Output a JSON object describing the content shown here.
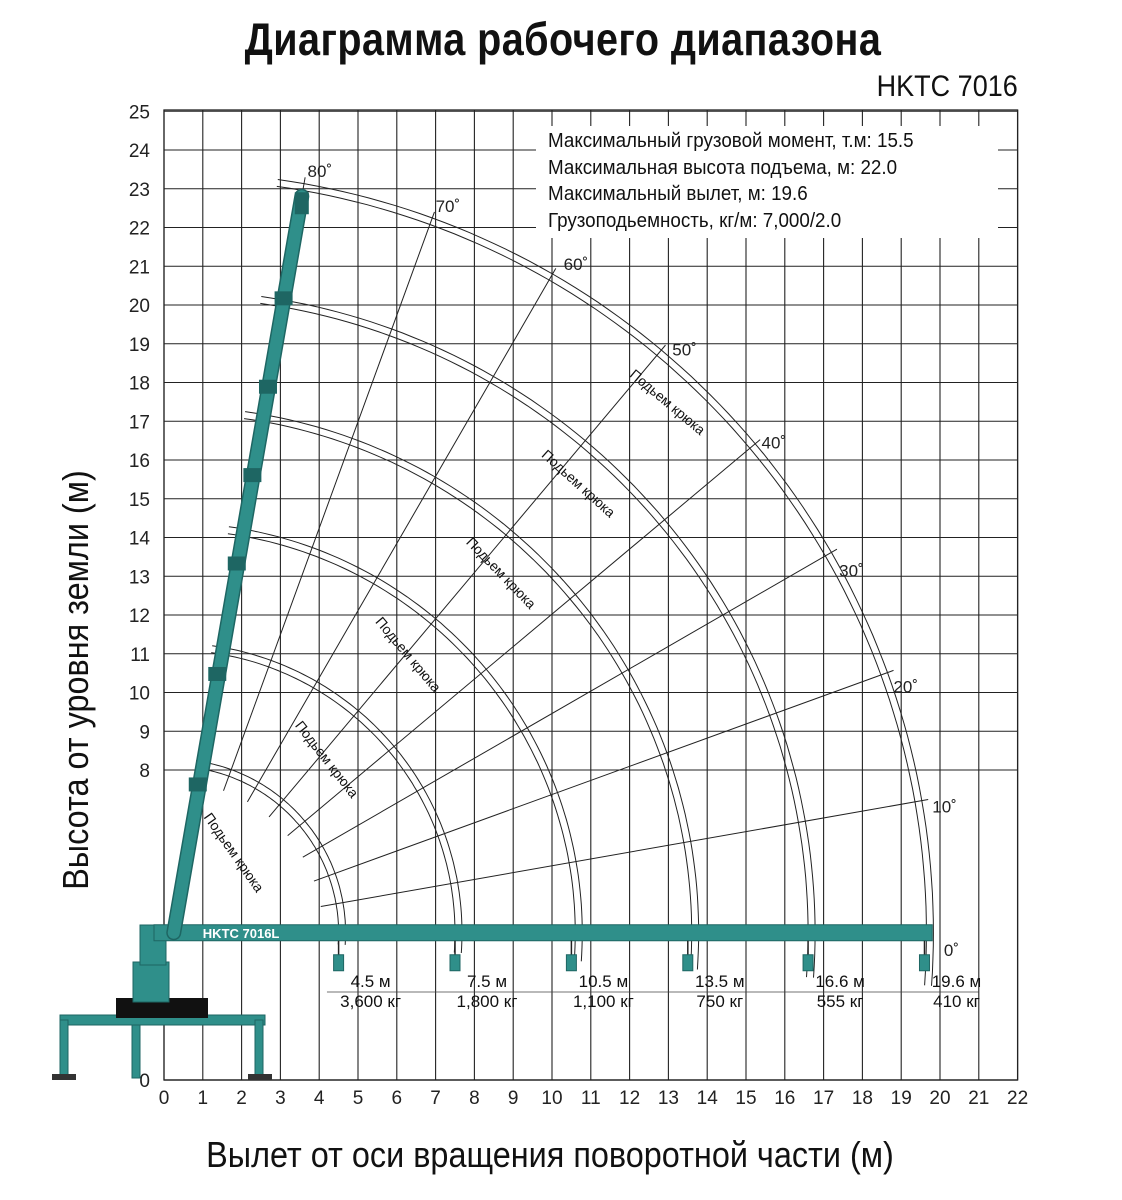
{
  "title": "Диаграмма рабочего диапазона",
  "model": "HKTC 7016",
  "y_axis_label": "Высота от уровня земли (м)",
  "x_axis_label": "Вылет от оси вращения поворотной части (м)",
  "specs": [
    "Максимальный грузовой момент, т.м: 15.5",
    "Максимальная высота подъема, м: 22.0",
    "Максимальный вылет, м: 19.6",
    "Грузоподьемность, кг/м: 7,000/2.0"
  ],
  "x_ticks": [
    "0",
    "1",
    "2",
    "3",
    "4",
    "5",
    "6",
    "7",
    "8",
    "9",
    "10",
    "11",
    "12",
    "13",
    "14",
    "15",
    "16",
    "17",
    "18",
    "19",
    "20",
    "21",
    "22"
  ],
  "y_ticks": [
    "0",
    "8",
    "9",
    "10",
    "11",
    "12",
    "13",
    "14",
    "15",
    "16",
    "17",
    "18",
    "19",
    "20",
    "21",
    "22",
    "23",
    "24",
    "25"
  ],
  "angle_labels": [
    "80˚",
    "70˚",
    "60˚",
    "50˚",
    "40˚",
    "30˚",
    "20˚",
    "10˚",
    "0˚"
  ],
  "boom_label": "HKTC 7016L",
  "hook_text": "Подьем крюка",
  "load_points": [
    {
      "reach": "4.5 м",
      "load": "3,600 кг"
    },
    {
      "reach": "7.5 м",
      "load": "1,800 кг"
    },
    {
      "reach": "10.5 м",
      "load": "1,100 кг"
    },
    {
      "reach": "13.5 м",
      "load": "750 кг"
    },
    {
      "reach": "16.6 м",
      "load": "555 кг"
    },
    {
      "reach": "19.6 м",
      "load": "410 кг"
    }
  ],
  "colors": {
    "boom": "#2f8f8a",
    "boom_dark": "#1e6663",
    "grid": "#222222"
  }
}
